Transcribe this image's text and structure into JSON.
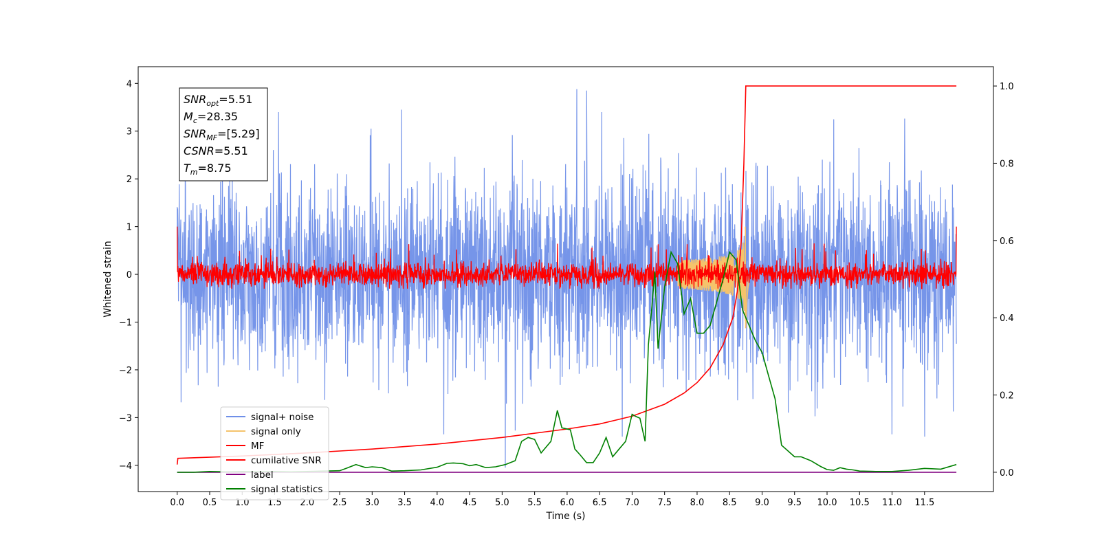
{
  "chart_data": {
    "type": "line",
    "xlabel": "Time (s)",
    "ylabel": "Whitened strain",
    "xlim": [
      -0.6,
      12.56
    ],
    "ylim": [
      -4.55,
      4.35
    ],
    "y2lim": [
      -0.05,
      1.05
    ],
    "x_ticks": [
      0.0,
      0.5,
      1.0,
      1.5,
      2.0,
      2.5,
      3.0,
      3.5,
      4.0,
      4.5,
      5.0,
      5.5,
      6.0,
      6.5,
      7.0,
      7.5,
      8.0,
      8.5,
      9.0,
      9.5,
      10.0,
      10.5,
      11.0,
      11.5
    ],
    "x_tick_labels": [
      "0.0",
      "0.5",
      "1.0",
      "1.5",
      "2.0",
      "2.5",
      "3.0",
      "3.5",
      "4.0",
      "4.5",
      "5.0",
      "5.5",
      "6.0",
      "6.5",
      "7.0",
      "7.5",
      "8.0",
      "8.5",
      "9.0",
      "9.5",
      "10.0",
      "10.5",
      "11.0",
      "11.5"
    ],
    "y_ticks": [
      -4,
      -3,
      -2,
      -1,
      0,
      1,
      2,
      3,
      4
    ],
    "y_tick_labels": [
      "−4",
      "−3",
      "−2",
      "−1",
      "0",
      "1",
      "2",
      "3",
      "4"
    ],
    "y2_ticks": [
      0.0,
      0.2,
      0.4,
      0.6,
      0.8,
      1.0
    ],
    "y2_tick_labels": [
      "0.0",
      "0.2",
      "0.4",
      "0.6",
      "0.8",
      "1.0"
    ],
    "grid": false,
    "legend_position": "lower-left",
    "colors": {
      "signal_noise": "#6f8fe8",
      "signal_only": "#f5c36b",
      "mf": "#ff0000",
      "cumulative_snr": "#ff0000",
      "label": "#800080",
      "signal_statistics": "#008000"
    },
    "series": [
      {
        "name": "signal+ noise",
        "axis": "left",
        "style": "noise",
        "x_range": [
          0.0,
          11.99
        ],
        "envelope_upper_approx": 2.6,
        "envelope_lower_approx": -2.6,
        "notable_peaks": [
          [
            6.15,
            3.88
          ],
          [
            6.3,
            3.85
          ],
          [
            3.45,
            3.45
          ],
          [
            5.05,
            -4.05
          ],
          [
            4.1,
            -3.35
          ],
          [
            11.0,
            -3.35
          ],
          [
            6.85,
            -3.4
          ]
        ]
      },
      {
        "name": "signal only",
        "axis": "left",
        "style": "chirp",
        "t_merger": 8.75,
        "x_range": [
          7.7,
          8.85
        ],
        "peak_amplitude": 1.2
      },
      {
        "name": "MF",
        "axis": "left",
        "style": "noise",
        "x_range": [
          0.0,
          11.99
        ],
        "envelope_upper_approx": 0.3,
        "envelope_lower_approx": -0.28,
        "edge_values": [
          [
            0.0,
            1.0
          ],
          [
            11.99,
            1.0
          ]
        ]
      },
      {
        "name": "cumilative SNR",
        "axis": "right",
        "x": [
          0.0,
          0.01,
          1.0,
          2.0,
          3.0,
          4.0,
          5.0,
          6.0,
          6.5,
          7.0,
          7.5,
          7.8,
          8.0,
          8.2,
          8.4,
          8.55,
          8.62,
          8.68,
          8.72,
          8.75,
          8.76,
          9.0,
          10.0,
          11.0,
          11.99
        ],
        "values": [
          0.02,
          0.036,
          0.042,
          0.05,
          0.06,
          0.073,
          0.09,
          0.112,
          0.125,
          0.145,
          0.176,
          0.205,
          0.232,
          0.27,
          0.33,
          0.4,
          0.47,
          0.6,
          0.8,
          1.0,
          1.0,
          1.0,
          1.0,
          1.0,
          1.0
        ]
      },
      {
        "name": "label",
        "axis": "right",
        "x": [
          0.0,
          11.99
        ],
        "values": [
          0.0,
          0.0
        ]
      },
      {
        "name": "signal statistics",
        "axis": "right",
        "x": [
          0.0,
          0.25,
          0.5,
          0.75,
          1.0,
          1.25,
          1.5,
          1.75,
          2.0,
          2.25,
          2.5,
          2.6,
          2.75,
          2.9,
          3.0,
          3.15,
          3.3,
          3.5,
          3.75,
          4.0,
          4.15,
          4.25,
          4.4,
          4.5,
          4.6,
          4.75,
          4.9,
          5.0,
          5.05,
          5.2,
          5.3,
          5.4,
          5.5,
          5.6,
          5.75,
          5.85,
          5.92,
          6.05,
          6.12,
          6.2,
          6.3,
          6.4,
          6.5,
          6.6,
          6.7,
          6.8,
          6.9,
          7.0,
          7.05,
          7.12,
          7.2,
          7.25,
          7.3,
          7.35,
          7.4,
          7.5,
          7.6,
          7.7,
          7.8,
          7.9,
          8.0,
          8.1,
          8.2,
          8.3,
          8.4,
          8.5,
          8.6,
          8.7,
          8.8,
          8.9,
          9.0,
          9.1,
          9.2,
          9.3,
          9.4,
          9.5,
          9.6,
          9.75,
          9.9,
          10.0,
          10.1,
          10.2,
          10.3,
          10.4,
          10.5,
          10.75,
          11.0,
          11.25,
          11.5,
          11.75,
          11.99
        ],
        "values": [
          0.0,
          0.0,
          0.002,
          0.001,
          0.002,
          0.001,
          0.002,
          0.001,
          0.002,
          0.003,
          0.004,
          0.01,
          0.02,
          0.012,
          0.014,
          0.012,
          0.003,
          0.004,
          0.006,
          0.013,
          0.023,
          0.024,
          0.022,
          0.017,
          0.02,
          0.012,
          0.014,
          0.018,
          0.02,
          0.03,
          0.08,
          0.09,
          0.085,
          0.05,
          0.08,
          0.16,
          0.115,
          0.11,
          0.06,
          0.045,
          0.025,
          0.025,
          0.05,
          0.09,
          0.04,
          0.06,
          0.08,
          0.15,
          0.145,
          0.14,
          0.08,
          0.33,
          0.42,
          0.52,
          0.32,
          0.48,
          0.57,
          0.54,
          0.41,
          0.45,
          0.36,
          0.36,
          0.38,
          0.44,
          0.5,
          0.57,
          0.55,
          0.42,
          0.38,
          0.34,
          0.31,
          0.25,
          0.19,
          0.07,
          0.055,
          0.04,
          0.04,
          0.03,
          0.015,
          0.007,
          0.005,
          0.012,
          0.008,
          0.006,
          0.003,
          0.002,
          0.002,
          0.005,
          0.01,
          0.008,
          0.02
        ]
      }
    ],
    "annotation": {
      "lines": [
        {
          "main": "SNR",
          "sub": "opt",
          "rest": "=5.51"
        },
        {
          "main": "M",
          "sub": "c",
          "rest": "=28.35"
        },
        {
          "main": "SNR",
          "sub": "MF",
          "rest": "=[5.29]"
        },
        {
          "main": "CSNR",
          "sub": "",
          "rest": "=5.51"
        },
        {
          "main": "T",
          "sub": "m",
          "rest": "=8.75"
        }
      ]
    },
    "legend": [
      "signal+ noise",
      "signal only",
      "MF",
      "cumilative SNR",
      "label",
      "signal statistics"
    ]
  }
}
